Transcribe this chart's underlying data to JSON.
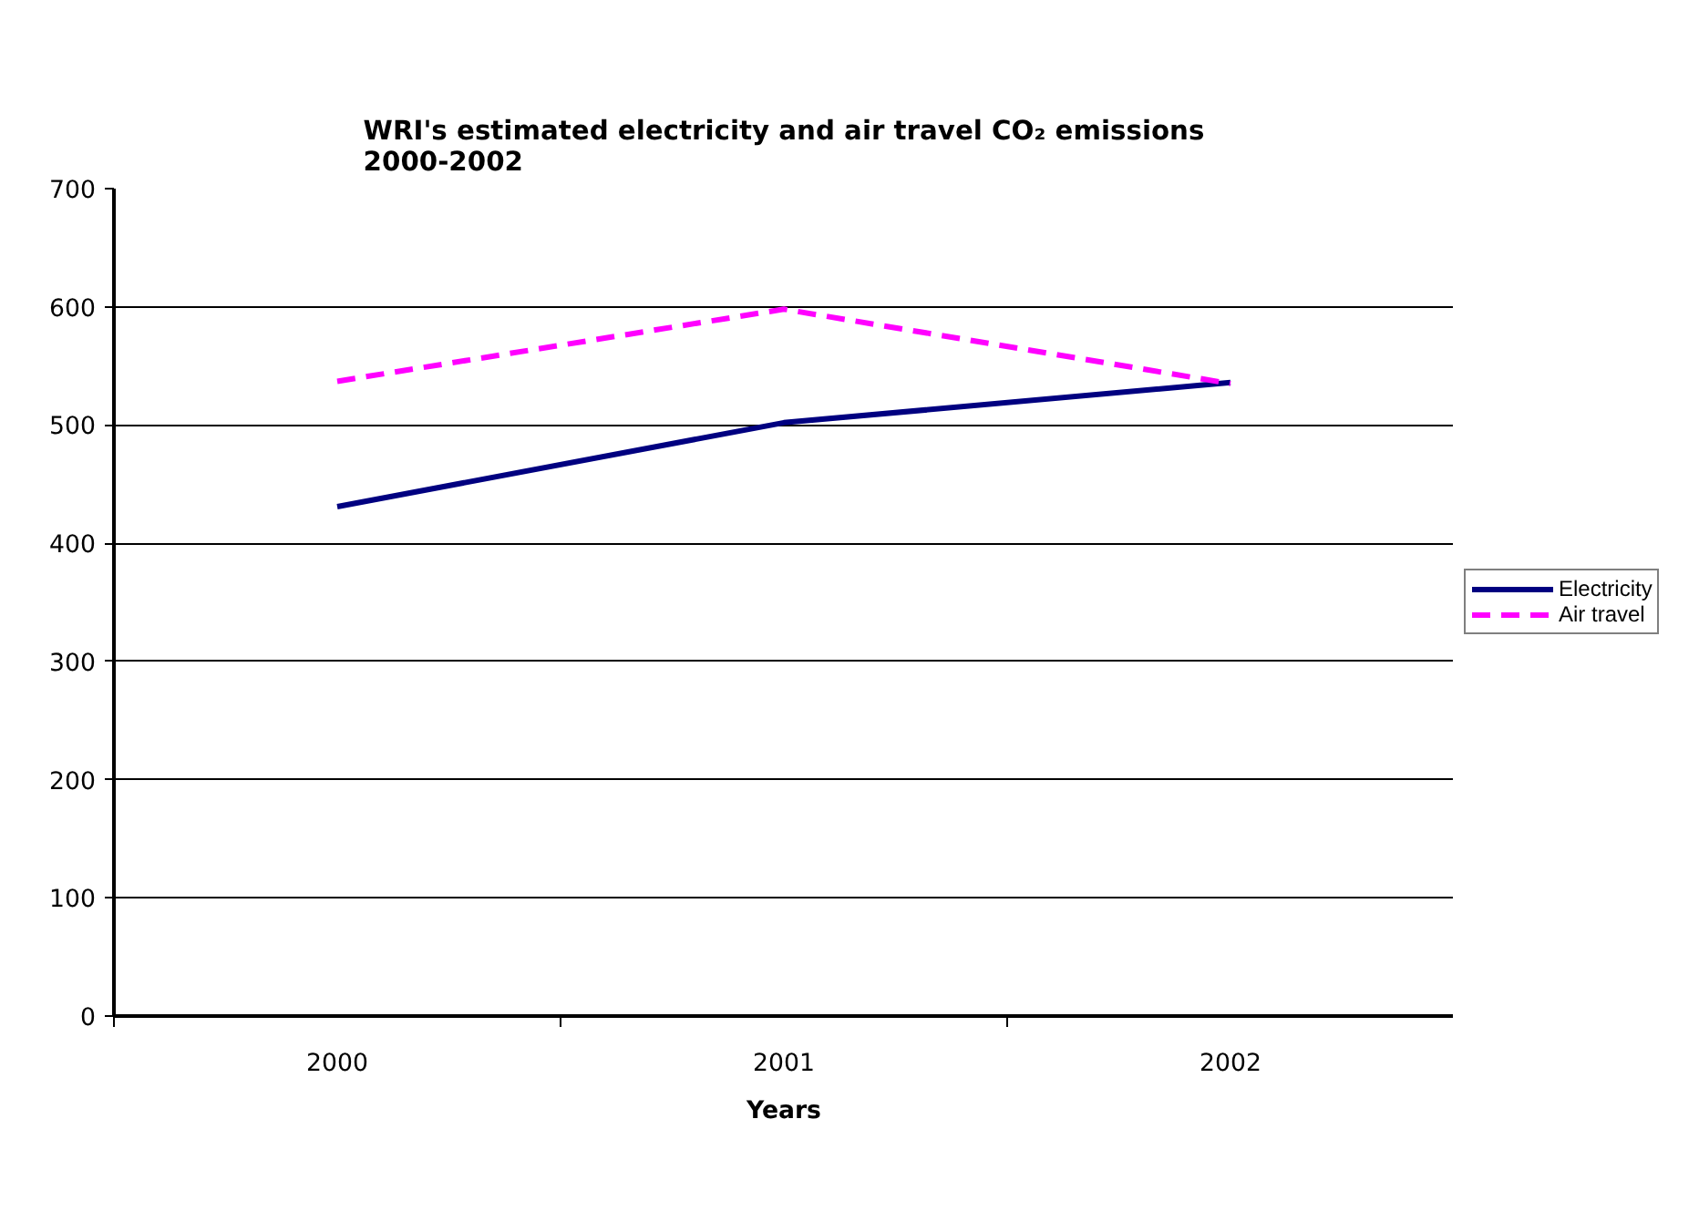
{
  "chart_data": {
    "type": "line",
    "title": "WRI's estimated electricity and air travel CO₂ emissions\n2000-2002",
    "xlabel": "Years",
    "categories": [
      "2000",
      "2001",
      "2002"
    ],
    "series": [
      {
        "name": "Electricity",
        "color": "#000080",
        "values": [
          431,
          502,
          536
        ],
        "line_style": "solid"
      },
      {
        "name": "Air travel",
        "color": "#ff00ff",
        "values": [
          537,
          598,
          535
        ],
        "line_style": "dashed"
      }
    ],
    "ylim": [
      0,
      700
    ],
    "yticks": [
      0,
      100,
      200,
      300,
      400,
      500,
      600,
      700
    ],
    "grid": "y",
    "legend": "right"
  }
}
